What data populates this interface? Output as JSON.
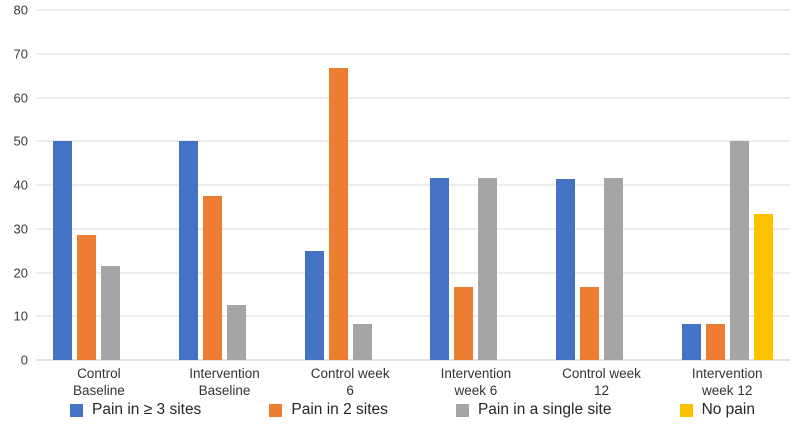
{
  "chart_data": {
    "type": "bar",
    "title": "",
    "xlabel": "",
    "ylabel": "",
    "ylim": [
      0,
      80
    ],
    "yticks": [
      0,
      10,
      20,
      30,
      40,
      50,
      60,
      70,
      80
    ],
    "grid": true,
    "legend_position": "bottom",
    "gridline_color": "#d9d9d9",
    "categories": [
      "Control Baseline",
      "Intervention Baseline",
      "Control week 6",
      "Intervention week 6",
      "Control week 12",
      "Intervention week 12"
    ],
    "category_lines": [
      [
        "Control",
        "Baseline"
      ],
      [
        "Intervention",
        "Baseline"
      ],
      [
        "Control week",
        "6"
      ],
      [
        "Intervention",
        "week 6"
      ],
      [
        "Control week",
        "12"
      ],
      [
        "Intervention",
        "week 12"
      ]
    ],
    "series": [
      {
        "name": "Pain in ≥ 3 sites",
        "color": "#4472C4",
        "values": [
          50,
          50,
          25,
          41.7,
          41.4,
          8.3
        ]
      },
      {
        "name": "Pain in 2 sites",
        "color": "#ED7D31",
        "values": [
          28.6,
          37.5,
          66.7,
          16.7,
          16.7,
          8.3
        ]
      },
      {
        "name": "Pain in a single site",
        "color": "#A5A5A5",
        "values": [
          21.4,
          12.5,
          8.3,
          41.7,
          41.7,
          50
        ]
      },
      {
        "name": "No pain",
        "color": "#FFC000",
        "values": [
          0,
          0,
          0,
          0,
          0,
          33.3
        ]
      }
    ]
  }
}
